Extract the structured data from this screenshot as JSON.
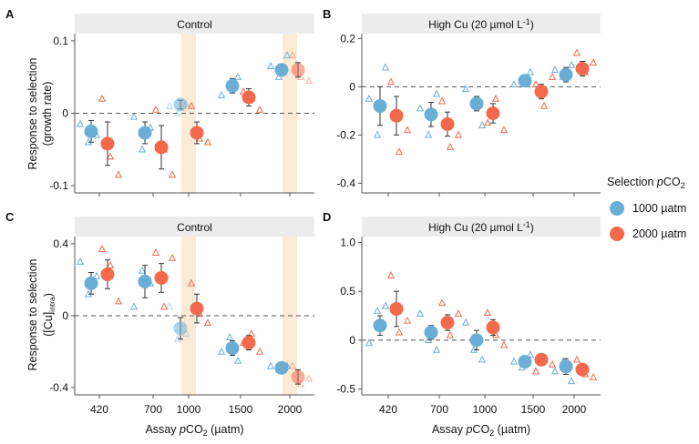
{
  "colors": {
    "series_1000": "#6aaed6",
    "series_2000": "#f26a4b",
    "highlight_band": "#fbebd6",
    "strip_bg": "#ececec",
    "axis": "#555555"
  },
  "legend": {
    "title_prefix": "Selection ",
    "title_italic": "p",
    "title_suffix": "CO",
    "title_sub": "2",
    "series": [
      {
        "name": "1000 µatm"
      },
      {
        "name": "2000 µatm"
      }
    ]
  },
  "x_axis": {
    "title_prefix": "Assay ",
    "title_italic": "p",
    "title_mid": "CO",
    "title_sub": "2",
    "title_suffix": " (µatm)",
    "tick_labels": [
      "420",
      "700",
      "1000",
      "1500",
      "2000"
    ]
  },
  "y_axis_titles": {
    "top_line1": "Response to selection",
    "top_line2": "(growth rate)",
    "bottom_line1": "Response to selection",
    "bottom_line2_prefix": "([Cu]",
    "bottom_line2_sub": "intra",
    "bottom_line2_suffix": ")"
  },
  "chart_data": [
    {
      "type": "scatter",
      "panel": "A",
      "title": "Control",
      "ylim": [
        -0.11,
        0.11
      ],
      "yticks": [
        -0.1,
        0,
        0.1
      ],
      "ytick_labels": [
        "-0.1",
        "0",
        "0.1"
      ],
      "highlights": [
        "1000",
        "2000"
      ],
      "faded": [
        {
          "series": "1000 µatm",
          "x": "1000"
        },
        {
          "series": "2000 µatm",
          "x": "2000"
        }
      ],
      "categories": [
        "420",
        "700",
        "1000",
        "1500",
        "2000"
      ],
      "series": [
        {
          "name": "1000 µatm",
          "means": [
            -0.025,
            -0.027,
            0.012,
            0.038,
            0.06
          ],
          "errors": [
            0.015,
            0.015,
            0.006,
            0.01,
            0.008
          ],
          "replicates": [
            [
              -0.015,
              -0.04,
              -0.03
            ],
            [
              -0.005,
              -0.05,
              -0.02
            ],
            [
              0.01,
              0.0,
              0.013
            ],
            [
              0.025,
              0.04,
              0.05
            ],
            [
              0.065,
              0.05,
              0.08
            ]
          ]
        },
        {
          "name": "2000 µatm",
          "means": [
            -0.042,
            -0.047,
            -0.027,
            0.022,
            0.06
          ],
          "errors": [
            0.03,
            0.03,
            0.015,
            0.012,
            0.01
          ],
          "replicates": [
            [
              0.02,
              -0.06,
              -0.085
            ],
            [
              0.005,
              -0.05,
              -0.085
            ],
            [
              0.01,
              -0.035,
              -0.04
            ],
            [
              0.03,
              0.02,
              0.005
            ],
            [
              0.08,
              0.05,
              0.045
            ]
          ]
        }
      ]
    },
    {
      "type": "scatter",
      "panel": "B",
      "title_prefix": "High Cu (20 µmol L",
      "title_sup": "-1",
      "title_suffix": ")",
      "ylim": [
        -0.44,
        0.22
      ],
      "yticks": [
        -0.4,
        -0.2,
        0,
        0.2
      ],
      "ytick_labels": [
        "-0.4",
        "-0.2",
        "0",
        "0.2"
      ],
      "highlights": [],
      "faded": [],
      "categories": [
        "420",
        "700",
        "1000",
        "1500",
        "2000"
      ],
      "series": [
        {
          "name": "1000 µatm",
          "means": [
            -0.08,
            -0.115,
            -0.07,
            0.025,
            0.05
          ],
          "errors": [
            0.08,
            0.05,
            0.03,
            0.015,
            0.03
          ],
          "replicates": [
            [
              -0.05,
              -0.2,
              0.08
            ],
            [
              -0.09,
              -0.2,
              -0.03
            ],
            [
              -0.01,
              -0.07,
              -0.16
            ],
            [
              0.01,
              0.03,
              0.06
            ],
            [
              0.07,
              0.04,
              0.09
            ]
          ]
        },
        {
          "name": "2000 µatm",
          "means": [
            -0.12,
            -0.155,
            -0.11,
            -0.02,
            0.075
          ],
          "errors": [
            0.08,
            0.05,
            0.04,
            0.03,
            0.03
          ],
          "replicates": [
            [
              0.02,
              -0.27,
              -0.18
            ],
            [
              -0.06,
              -0.25,
              -0.2
            ],
            [
              -0.15,
              -0.05,
              -0.18
            ],
            [
              0.01,
              -0.08,
              0.04
            ],
            [
              0.14,
              0.06,
              0.1
            ]
          ]
        }
      ]
    },
    {
      "type": "scatter",
      "panel": "C",
      "title": "Control",
      "ylim": [
        -0.44,
        0.44
      ],
      "yticks": [
        -0.4,
        0,
        0.4
      ],
      "ytick_labels": [
        "-0.4",
        "0",
        "0.4"
      ],
      "highlights": [
        "1000",
        "2000"
      ],
      "faded": [
        {
          "series": "1000 µatm",
          "x": "1000"
        },
        {
          "series": "2000 µatm",
          "x": "2000"
        }
      ],
      "categories": [
        "420",
        "700",
        "1000",
        "1500",
        "2000"
      ],
      "series": [
        {
          "name": "1000 µatm",
          "means": [
            0.18,
            0.19,
            -0.07,
            -0.18,
            -0.29
          ],
          "errors": [
            0.06,
            0.09,
            0.06,
            0.04,
            0.02
          ],
          "replicates": [
            [
              0.3,
              0.12,
              0.22
            ],
            [
              0.05,
              0.25,
              0.18
            ],
            [
              0.05,
              -0.13,
              -0.1
            ],
            [
              -0.2,
              -0.12,
              -0.25
            ],
            [
              -0.28,
              -0.3,
              -0.28
            ]
          ]
        },
        {
          "name": "2000 µatm",
          "means": [
            0.23,
            0.21,
            0.04,
            -0.15,
            -0.34
          ],
          "errors": [
            0.08,
            0.08,
            0.08,
            0.04,
            0.04
          ],
          "replicates": [
            [
              0.37,
              0.28,
              0.08
            ],
            [
              0.35,
              0.05,
              0.32
            ],
            [
              0.18,
              0.01,
              -0.04
            ],
            [
              -0.15,
              -0.1,
              -0.2
            ],
            [
              -0.28,
              -0.38,
              -0.35
            ]
          ]
        }
      ]
    },
    {
      "type": "scatter",
      "panel": "D",
      "title_prefix": "High Cu (20 µmol L",
      "title_sup": "-1",
      "title_suffix": ")",
      "ylim": [
        -0.56,
        1.06
      ],
      "yticks": [
        -0.5,
        0,
        0.5,
        1.0
      ],
      "ytick_labels": [
        "-0.5",
        "0",
        "0.5",
        "1.0"
      ],
      "highlights": [],
      "faded": [],
      "categories": [
        "420",
        "700",
        "1000",
        "1500",
        "2000"
      ],
      "series": [
        {
          "name": "1000 µatm",
          "means": [
            0.15,
            0.08,
            0.0,
            -0.22,
            -0.27
          ],
          "errors": [
            0.1,
            0.07,
            0.1,
            0.05,
            0.08
          ],
          "replicates": [
            [
              -0.03,
              0.3,
              0.35
            ],
            [
              0.27,
              0.0,
              -0.1
            ],
            [
              0.18,
              -0.1,
              -0.2
            ],
            [
              -0.22,
              -0.28,
              -0.15
            ],
            [
              -0.32,
              -0.22,
              -0.42
            ]
          ]
        },
        {
          "name": "2000 µatm",
          "means": [
            0.32,
            0.18,
            0.13,
            -0.2,
            -0.3
          ],
          "errors": [
            0.18,
            0.08,
            0.08,
            0.05,
            0.05
          ],
          "replicates": [
            [
              0.66,
              0.08,
              0.2
            ],
            [
              0.38,
              0.05,
              0.27
            ],
            [
              0.28,
              0.05,
              -0.05
            ],
            [
              -0.32,
              -0.18,
              -0.25
            ],
            [
              -0.2,
              -0.35,
              -0.38
            ]
          ]
        }
      ]
    }
  ]
}
